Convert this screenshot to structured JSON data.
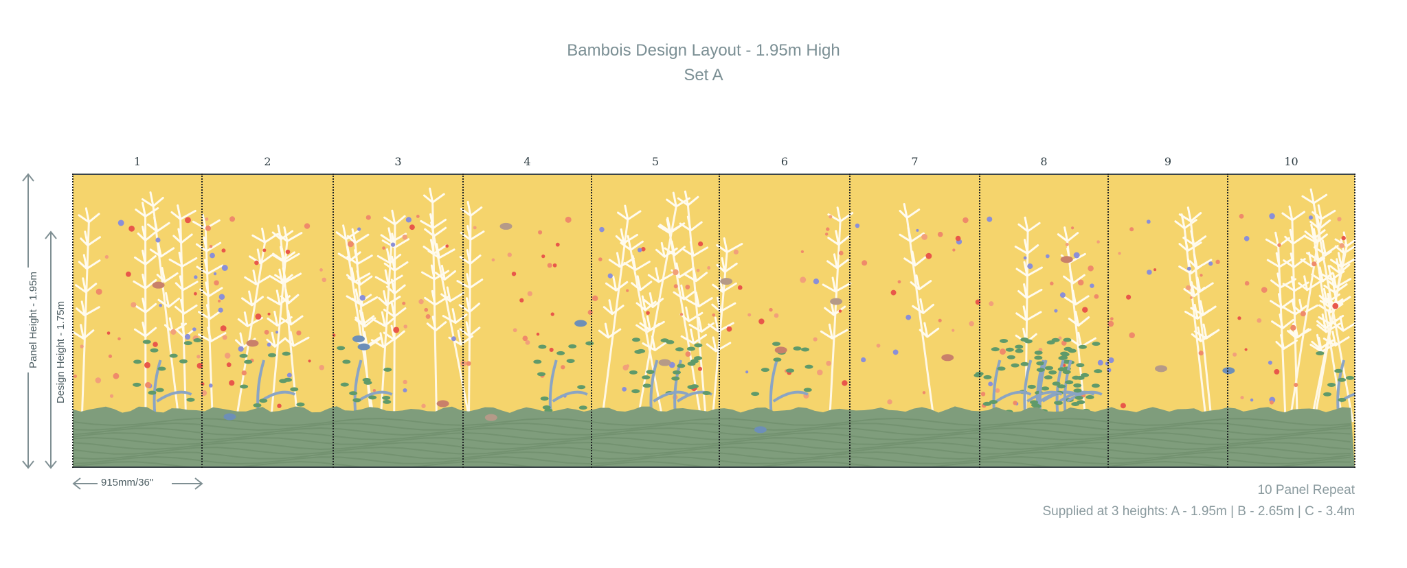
{
  "title": "Bambois Design Layout - 1.95m High",
  "subtitle": "Set A",
  "panels": [
    "1",
    "2",
    "3",
    "4",
    "5",
    "6",
    "7",
    "8",
    "9",
    "10"
  ],
  "dimensions": {
    "panel_height": "Panel Height - 1.95m",
    "design_height": "Design Height - 1.75m",
    "panel_width": "915mm/36\""
  },
  "notes": {
    "repeat": "10 Panel Repeat",
    "heights": "Supplied at 3 heights: A - 1.95m | B - 2.65m | C - 3.4m"
  },
  "colors": {
    "sky": "#f5d46c",
    "ground": "#7f9d7c",
    "text": "#7b8f94",
    "arrow": "#7f8f93"
  }
}
